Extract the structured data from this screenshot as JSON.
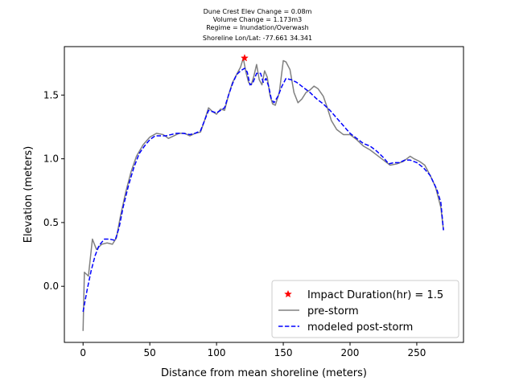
{
  "chart_data": {
    "type": "line",
    "title_lines": [
      "Dune Crest Elev Change = 0.08m",
      "Volume Change = 1.173m3",
      "Regime = Inundation/Overwash",
      "Shoreline Lon/Lat: -77.661 34.341"
    ],
    "xlabel": "Distance from mean shoreline (meters)",
    "ylabel": "Elevation (meters)",
    "xlim": [
      -14,
      285
    ],
    "ylim": [
      -0.44,
      1.88
    ],
    "xticks": [
      0,
      50,
      100,
      150,
      200,
      250
    ],
    "yticks": [
      0.0,
      0.5,
      1.0,
      1.5
    ],
    "xtick_labels": [
      "0",
      "50",
      "100",
      "150",
      "200",
      "250"
    ],
    "ytick_labels": [
      "0.0",
      "0.5",
      "1.0",
      "1.5"
    ],
    "grid": false,
    "legend_position": "lower right",
    "series": [
      {
        "name": "pre-storm",
        "color": "#808080",
        "style": "solid",
        "points": [
          [
            0,
            -0.35
          ],
          [
            1,
            0.11
          ],
          [
            4,
            0.08
          ],
          [
            7,
            0.37
          ],
          [
            10,
            0.29
          ],
          [
            14,
            0.33
          ],
          [
            18,
            0.34
          ],
          [
            22,
            0.33
          ],
          [
            25,
            0.38
          ],
          [
            28,
            0.55
          ],
          [
            32,
            0.74
          ],
          [
            36,
            0.9
          ],
          [
            40,
            1.02
          ],
          [
            45,
            1.11
          ],
          [
            50,
            1.17
          ],
          [
            55,
            1.2
          ],
          [
            60,
            1.19
          ],
          [
            64,
            1.16
          ],
          [
            68,
            1.18
          ],
          [
            72,
            1.2
          ],
          [
            76,
            1.2
          ],
          [
            80,
            1.18
          ],
          [
            84,
            1.2
          ],
          [
            88,
            1.21
          ],
          [
            91,
            1.3
          ],
          [
            94,
            1.4
          ],
          [
            97,
            1.37
          ],
          [
            100,
            1.35
          ],
          [
            103,
            1.39
          ],
          [
            106,
            1.38
          ],
          [
            109,
            1.5
          ],
          [
            112,
            1.6
          ],
          [
            115,
            1.66
          ],
          [
            118,
            1.72
          ],
          [
            120,
            1.79
          ],
          [
            122,
            1.68
          ],
          [
            124,
            1.6
          ],
          [
            126,
            1.58
          ],
          [
            128,
            1.65
          ],
          [
            130,
            1.74
          ],
          [
            132,
            1.62
          ],
          [
            134,
            1.58
          ],
          [
            136,
            1.69
          ],
          [
            138,
            1.64
          ],
          [
            140,
            1.5
          ],
          [
            142,
            1.43
          ],
          [
            144,
            1.42
          ],
          [
            147,
            1.52
          ],
          [
            150,
            1.77
          ],
          [
            152,
            1.76
          ],
          [
            155,
            1.7
          ],
          [
            158,
            1.52
          ],
          [
            161,
            1.44
          ],
          [
            164,
            1.47
          ],
          [
            167,
            1.52
          ],
          [
            170,
            1.54
          ],
          [
            173,
            1.57
          ],
          [
            176,
            1.55
          ],
          [
            180,
            1.49
          ],
          [
            183,
            1.4
          ],
          [
            186,
            1.3
          ],
          [
            190,
            1.23
          ],
          [
            195,
            1.19
          ],
          [
            200,
            1.19
          ],
          [
            205,
            1.15
          ],
          [
            210,
            1.1
          ],
          [
            215,
            1.07
          ],
          [
            220,
            1.03
          ],
          [
            225,
            0.99
          ],
          [
            230,
            0.95
          ],
          [
            235,
            0.96
          ],
          [
            240,
            0.98
          ],
          [
            245,
            1.02
          ],
          [
            248,
            1.0
          ],
          [
            252,
            0.98
          ],
          [
            256,
            0.95
          ],
          [
            260,
            0.87
          ],
          [
            264,
            0.78
          ],
          [
            268,
            0.62
          ],
          [
            270,
            0.44
          ]
        ]
      },
      {
        "name": "modeled post-storm",
        "color": "#0000ff",
        "style": "dashed",
        "points": [
          [
            0,
            -0.2
          ],
          [
            3,
            -0.03
          ],
          [
            6,
            0.12
          ],
          [
            9,
            0.24
          ],
          [
            12,
            0.32
          ],
          [
            16,
            0.37
          ],
          [
            20,
            0.37
          ],
          [
            24,
            0.36
          ],
          [
            27,
            0.46
          ],
          [
            30,
            0.62
          ],
          [
            34,
            0.79
          ],
          [
            38,
            0.93
          ],
          [
            42,
            1.04
          ],
          [
            46,
            1.1
          ],
          [
            50,
            1.15
          ],
          [
            54,
            1.18
          ],
          [
            58,
            1.18
          ],
          [
            62,
            1.18
          ],
          [
            66,
            1.19
          ],
          [
            70,
            1.2
          ],
          [
            75,
            1.2
          ],
          [
            80,
            1.19
          ],
          [
            84,
            1.2
          ],
          [
            88,
            1.22
          ],
          [
            91,
            1.3
          ],
          [
            94,
            1.38
          ],
          [
            97,
            1.37
          ],
          [
            100,
            1.36
          ],
          [
            103,
            1.38
          ],
          [
            106,
            1.4
          ],
          [
            109,
            1.5
          ],
          [
            112,
            1.59
          ],
          [
            115,
            1.66
          ],
          [
            118,
            1.69
          ],
          [
            121,
            1.71
          ],
          [
            123,
            1.68
          ],
          [
            125,
            1.58
          ],
          [
            127,
            1.59
          ],
          [
            130,
            1.67
          ],
          [
            133,
            1.67
          ],
          [
            135,
            1.6
          ],
          [
            137,
            1.63
          ],
          [
            139,
            1.57
          ],
          [
            141,
            1.47
          ],
          [
            143,
            1.44
          ],
          [
            146,
            1.49
          ],
          [
            149,
            1.57
          ],
          [
            152,
            1.63
          ],
          [
            156,
            1.62
          ],
          [
            160,
            1.6
          ],
          [
            165,
            1.56
          ],
          [
            170,
            1.52
          ],
          [
            175,
            1.47
          ],
          [
            180,
            1.43
          ],
          [
            185,
            1.38
          ],
          [
            190,
            1.32
          ],
          [
            195,
            1.26
          ],
          [
            200,
            1.2
          ],
          [
            205,
            1.16
          ],
          [
            210,
            1.12
          ],
          [
            215,
            1.1
          ],
          [
            220,
            1.06
          ],
          [
            225,
            1.01
          ],
          [
            229,
            0.96
          ],
          [
            233,
            0.97
          ],
          [
            237,
            0.97
          ],
          [
            241,
            0.99
          ],
          [
            245,
            0.99
          ],
          [
            250,
            0.97
          ],
          [
            255,
            0.93
          ],
          [
            260,
            0.87
          ],
          [
            265,
            0.76
          ],
          [
            268,
            0.66
          ],
          [
            270,
            0.44
          ]
        ]
      }
    ],
    "markers": [
      {
        "name": "Impact Duration(hr) = 1.5",
        "x": 121,
        "y": 1.79,
        "symbol": "star",
        "color": "#ff0000"
      }
    ],
    "legend": [
      {
        "label": "Impact Duration(hr) = 1.5",
        "kind": "marker",
        "color": "#ff0000"
      },
      {
        "label": "pre-storm",
        "kind": "solid",
        "color": "#808080"
      },
      {
        "label": "modeled post-storm",
        "kind": "dashed",
        "color": "#0000ff"
      }
    ]
  }
}
